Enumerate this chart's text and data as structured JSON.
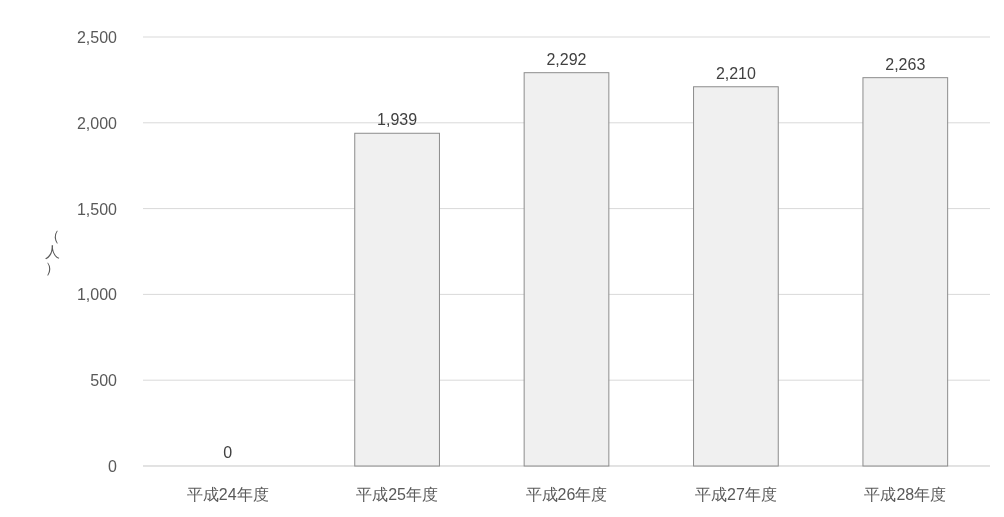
{
  "chart_data": {
    "type": "bar",
    "ylabel": "（人）",
    "categories": [
      "平成24年度",
      "平成25年度",
      "平成26年度",
      "平成27年度",
      "平成28年度"
    ],
    "values": [
      0,
      1939,
      2292,
      2210,
      2263
    ],
    "value_labels": [
      "0",
      "1,939",
      "2,292",
      "2,210",
      "2,263"
    ],
    "color": "#f0f0f0",
    "ylim": [
      0,
      2500
    ],
    "yticks": [
      {
        "value": 0,
        "label": "0"
      },
      {
        "value": 500,
        "label": "500"
      },
      {
        "value": 1000,
        "label": "1,000"
      },
      {
        "value": 1500,
        "label": "1,500"
      },
      {
        "value": 2000,
        "label": "2,000"
      },
      {
        "value": 2500,
        "label": "2,500"
      }
    ],
    "grid": "y"
  }
}
